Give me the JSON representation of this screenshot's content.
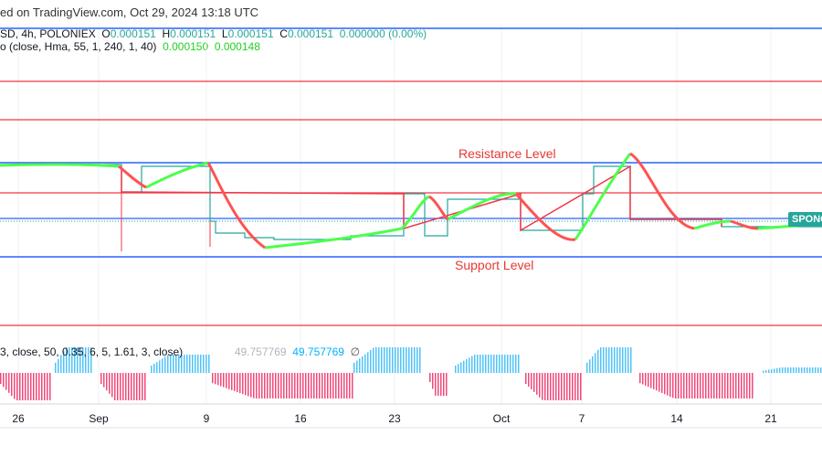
{
  "header": {
    "published": "ed on TradingView.com, Oct 29, 2024 13:18 UTC"
  },
  "legend": {
    "symbol": "SD, 4h, POLONIEX",
    "o_label": "O",
    "o": "0.000151",
    "h_label": "H",
    "h": "0.000151",
    "l_label": "L",
    "l": "0.000151",
    "c_label": "C",
    "c": "0.000151",
    "change": "0.000000 (0.00%)",
    "indicator1": "o (close, Hma, 55, 1, 240, 1, 40)",
    "ind1_v1": "0.000150",
    "ind1_v2": "0.000148",
    "indicator2": "3, close, 50, 0.35, 6, 5, 1.61, 3, close)",
    "ind2_v1": "49.757769",
    "ind2_v2": "49.757769",
    "ind2_icon": "∅"
  },
  "annotations": {
    "resistance": "Resistance Level",
    "support": "Support Level"
  },
  "price_tag": "SPONG",
  "x_axis": [
    "26",
    "Sep",
    "9",
    "16",
    "23",
    "Oct",
    "7",
    "14",
    "21"
  ],
  "colors": {
    "blue_line": "#2962ff",
    "red_line": "#f23645",
    "bull": "#4cff4c",
    "bear": "#ff5252",
    "hist_up": "#4fc3f7",
    "hist_down": "#f0487a",
    "step": "#26a69a"
  }
}
